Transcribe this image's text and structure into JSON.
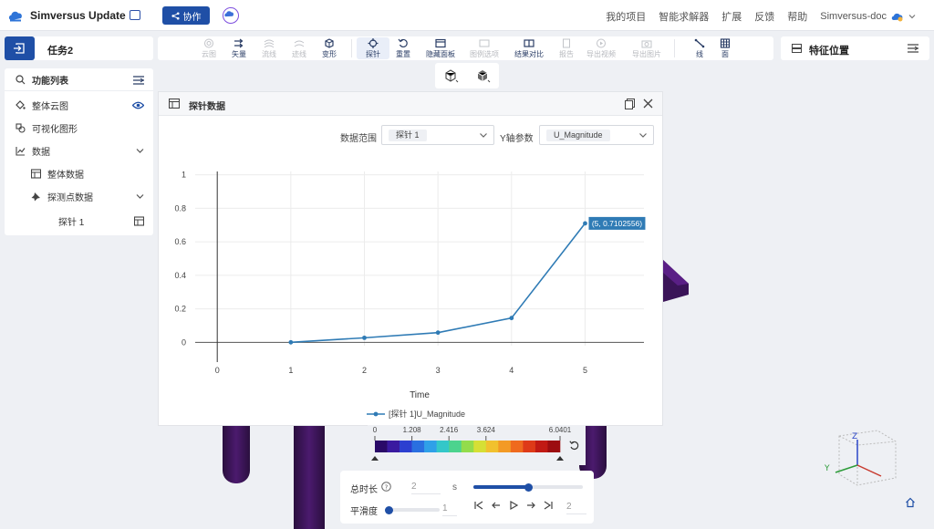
{
  "app": {
    "title": "Simversus Update",
    "collab_label": "协作"
  },
  "top_nav": {
    "items": [
      "我的项目",
      "智能求解器",
      "扩展",
      "反馈",
      "帮助"
    ],
    "user": "Simversus-doc"
  },
  "task": {
    "title": "任务2"
  },
  "toolbar": {
    "tools": [
      "云图",
      "矢量",
      "流线",
      "迹线",
      "变形",
      "探针",
      "重置",
      "隐藏面板",
      "图例选项",
      "结果对比",
      "报告",
      "导出视频",
      "导出图片",
      "线",
      "面"
    ]
  },
  "feature_panel": {
    "title": "特征位置"
  },
  "function_list": {
    "header": "功能列表",
    "items": [
      "整体云图",
      "可视化图形",
      "数据",
      "整体数据",
      "探测点数据",
      "探针 1"
    ]
  },
  "probe_dialog": {
    "title": "探针数据",
    "range_label": "数据范围",
    "range_value": "探针 1",
    "y_param_label": "Y轴参数",
    "y_param_value": "U_Magnitude"
  },
  "chart_data": {
    "type": "line",
    "xlabel": "Time",
    "ylabel": "",
    "xlim": [
      -0.3,
      5.8
    ],
    "ylim": [
      -0.02,
      1.02
    ],
    "x_ticks": [
      0,
      1,
      2,
      3,
      4,
      5
    ],
    "y_ticks": [
      0,
      0.2,
      0.4,
      0.6,
      0.8,
      1
    ],
    "series": [
      {
        "name": "[探针 1]U_Magnitude",
        "x": [
          1,
          2,
          3,
          4,
          5
        ],
        "y": [
          0.0,
          0.027,
          0.058,
          0.145,
          0.7102556
        ],
        "color": "#2f7bb5"
      }
    ],
    "hover_label": "(5, 0.7102556)",
    "legend_position": "bottom-center",
    "grid": true
  },
  "color_legend": {
    "ticks": [
      "0",
      "1.208",
      "2.416",
      "3.624",
      "6.0401"
    ],
    "colors": [
      "#2a0a68",
      "#3a1aa0",
      "#2c3fd0",
      "#2a6fe0",
      "#2fa0e8",
      "#34c7c9",
      "#4cd38e",
      "#93dc4c",
      "#d6df35",
      "#f1c12e",
      "#f39a25",
      "#ef6a1e",
      "#de3a18",
      "#c11a14",
      "#9c0d10"
    ]
  },
  "time_controls": {
    "duration_label": "总时长",
    "duration_value": "2",
    "duration_unit": "s",
    "duration_progress": 0.5,
    "smooth_label": "平滑度",
    "smooth_value": "1",
    "frame_value": "2"
  }
}
